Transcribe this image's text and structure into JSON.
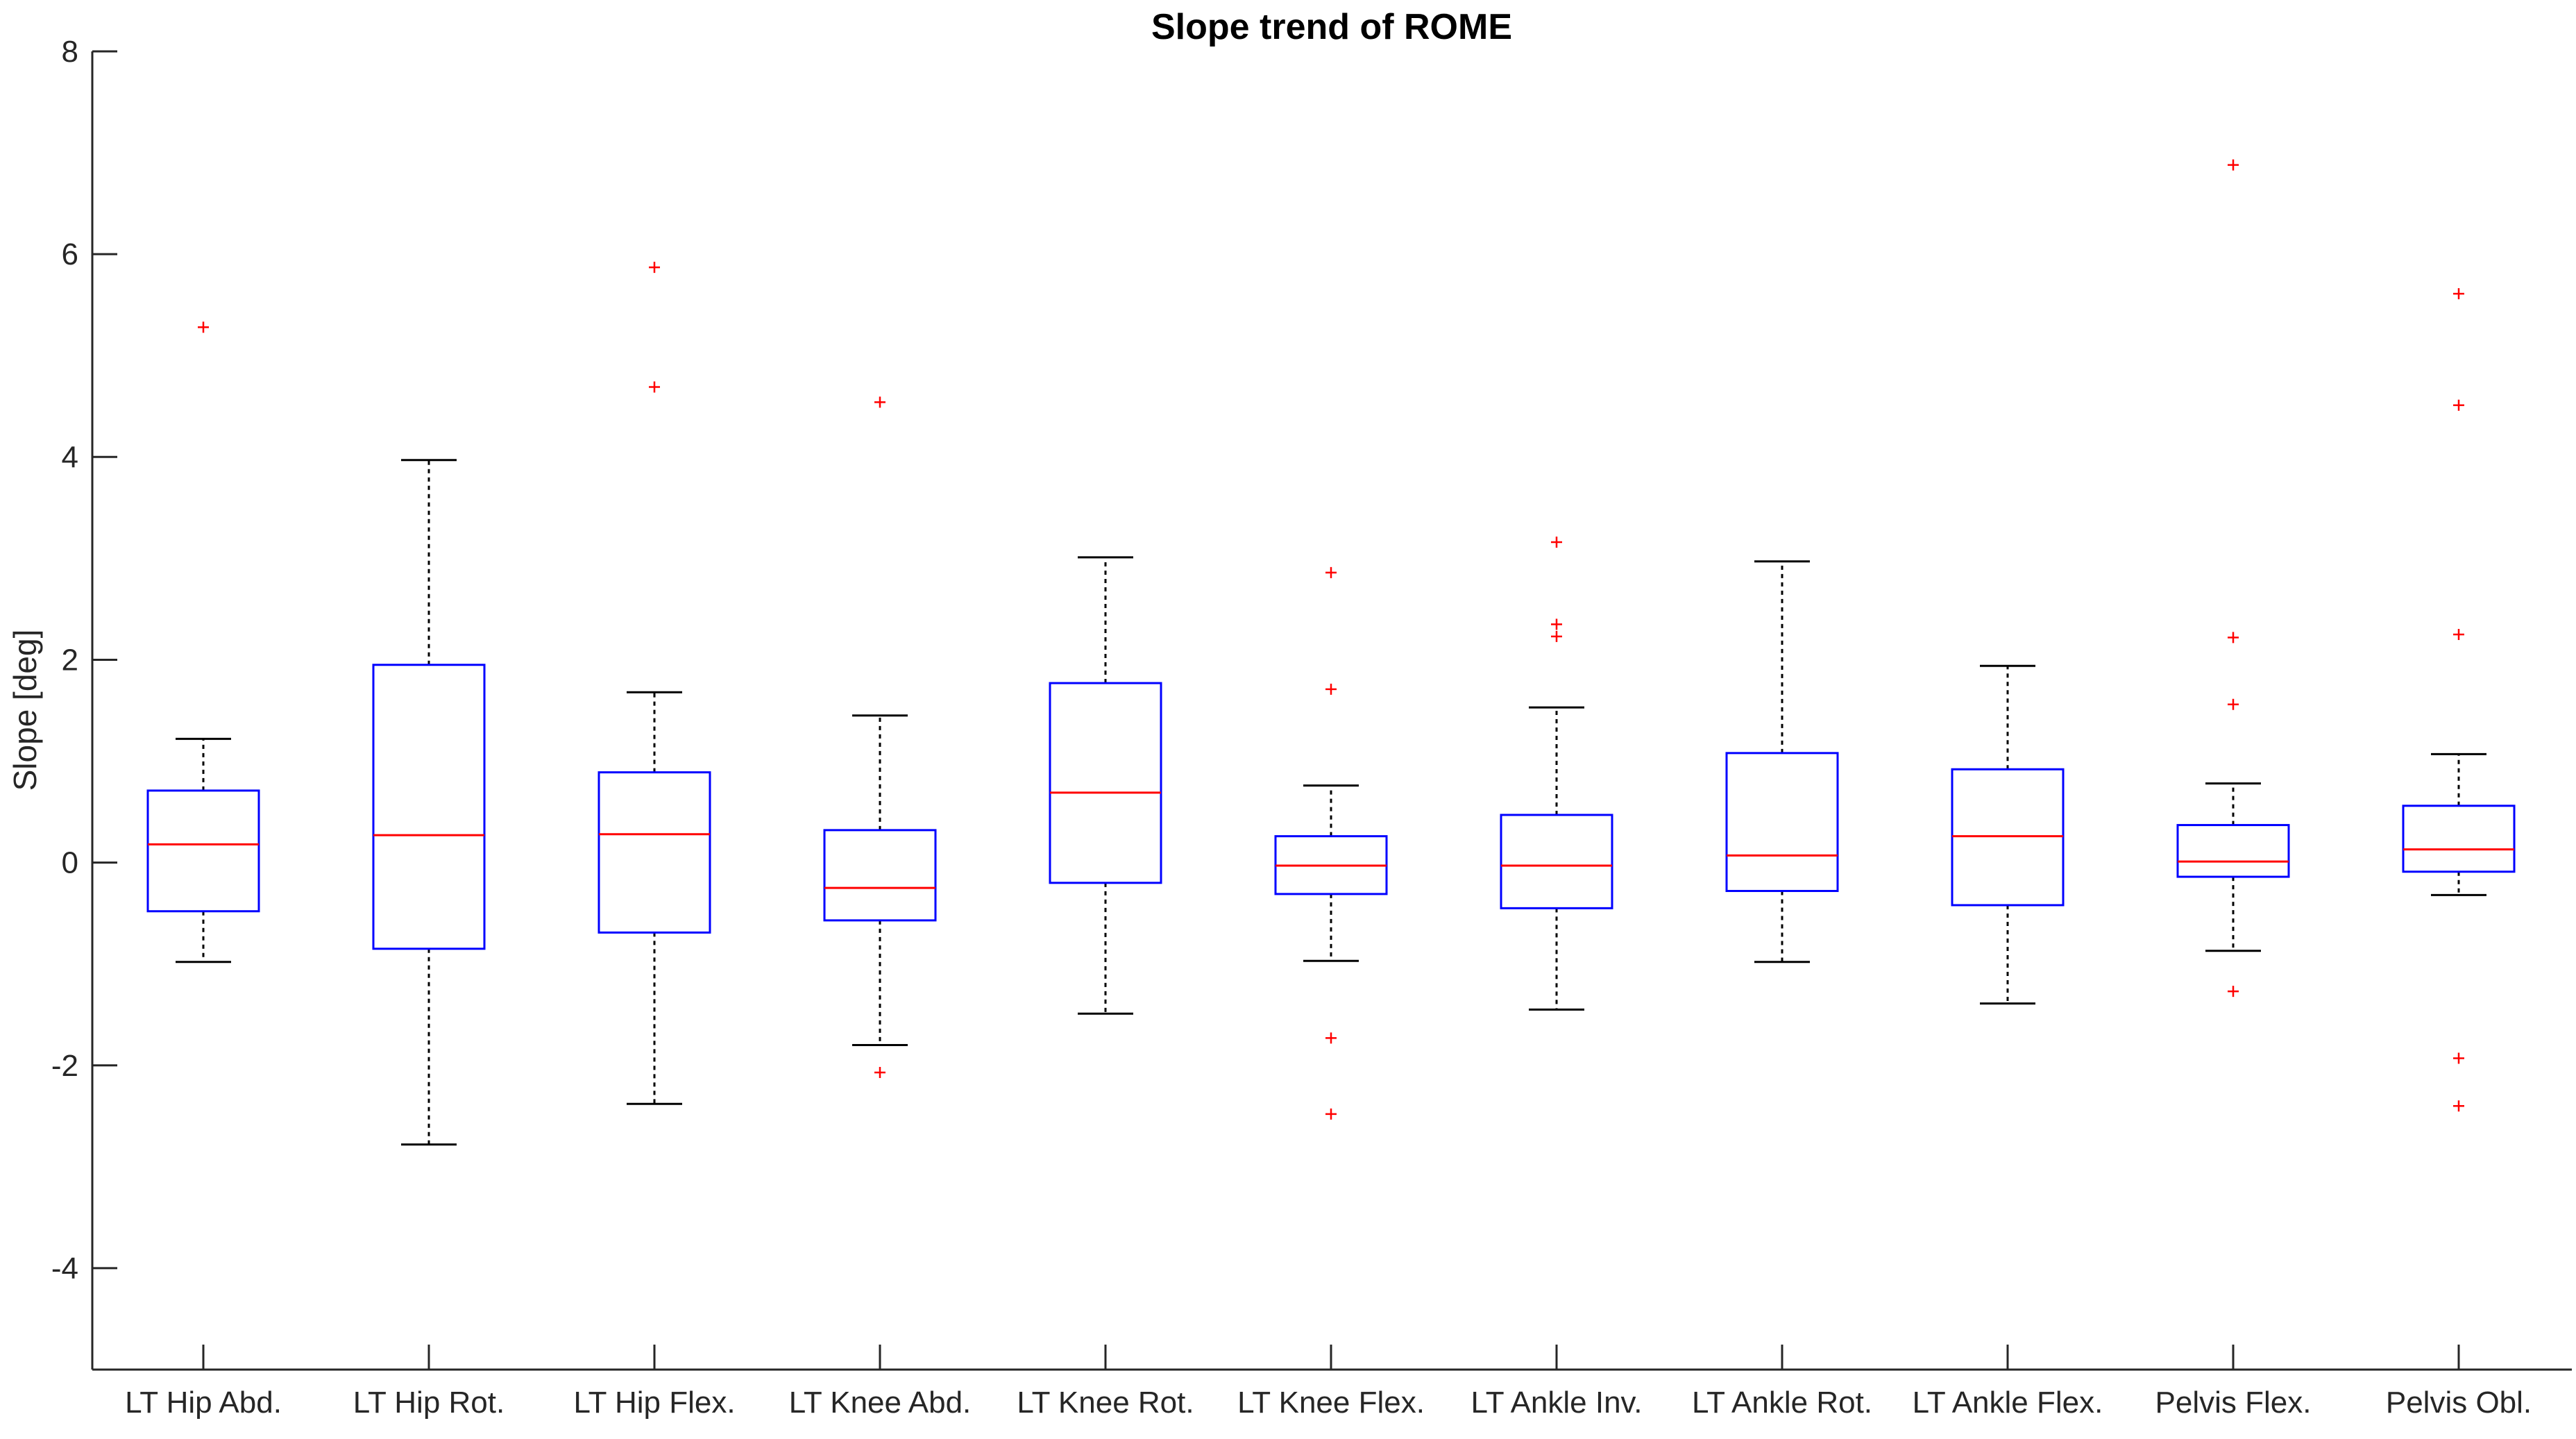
{
  "chart_data": {
    "type": "box",
    "title": "Slope trend of ROME",
    "xlabel": "",
    "ylabel": "Slope [deg]",
    "ylim": [
      -5,
      8
    ],
    "yticks": [
      -4,
      -2,
      0,
      2,
      4,
      6,
      8
    ],
    "grid": false,
    "legend": "none",
    "colors": {
      "box": "#0000ff",
      "median": "#ff0000",
      "whisker": "#000000",
      "outlier": "#ff0000"
    },
    "categories": [
      "LT Hip Abd.",
      "LT Hip Rot.",
      "LT Hip Flex.",
      "LT Knee Abd.",
      "LT Knee Rot.",
      "LT Knee Flex.",
      "LT Ankle Inv.",
      "LT Ankle Rot.",
      "LT Ankle Flex.",
      "Pelvis Flex.",
      "Pelvis Obl."
    ],
    "boxes": [
      {
        "whisker_low": -0.98,
        "q1": -0.48,
        "median": 0.18,
        "q3": 0.71,
        "whisker_high": 1.22,
        "outliers": [
          5.28
        ]
      },
      {
        "whisker_low": -2.78,
        "q1": -0.85,
        "median": 0.27,
        "q3": 1.95,
        "whisker_high": 3.97,
        "outliers": []
      },
      {
        "whisker_low": -2.38,
        "q1": -0.69,
        "median": 0.28,
        "q3": 0.89,
        "whisker_high": 1.68,
        "outliers": [
          5.87,
          4.69
        ]
      },
      {
        "whisker_low": -1.8,
        "q1": -0.57,
        "median": -0.25,
        "q3": 0.32,
        "whisker_high": 1.45,
        "outliers": [
          4.54,
          -2.07
        ]
      },
      {
        "whisker_low": -1.49,
        "q1": -0.2,
        "median": 0.69,
        "q3": 1.77,
        "whisker_high": 3.01,
        "outliers": []
      },
      {
        "whisker_low": -0.97,
        "q1": -0.31,
        "median": -0.03,
        "q3": 0.26,
        "whisker_high": 0.76,
        "outliers": [
          2.86,
          1.71,
          -1.73,
          -2.48
        ]
      },
      {
        "whisker_low": -1.45,
        "q1": -0.45,
        "median": -0.03,
        "q3": 0.47,
        "whisker_high": 1.53,
        "outliers": [
          3.16,
          2.35,
          2.23
        ]
      },
      {
        "whisker_low": -0.98,
        "q1": -0.28,
        "median": 0.07,
        "q3": 1.08,
        "whisker_high": 2.97,
        "outliers": []
      },
      {
        "whisker_low": -1.39,
        "q1": -0.42,
        "median": 0.26,
        "q3": 0.92,
        "whisker_high": 1.94,
        "outliers": []
      },
      {
        "whisker_low": -0.87,
        "q1": -0.14,
        "median": 0.01,
        "q3": 0.37,
        "whisker_high": 0.78,
        "outliers": [
          6.88,
          2.22,
          1.56,
          -1.27
        ]
      },
      {
        "whisker_low": -0.32,
        "q1": -0.09,
        "median": 0.13,
        "q3": 0.56,
        "whisker_high": 1.07,
        "outliers": [
          5.61,
          4.51,
          2.25,
          -1.93,
          -2.4
        ]
      }
    ]
  }
}
